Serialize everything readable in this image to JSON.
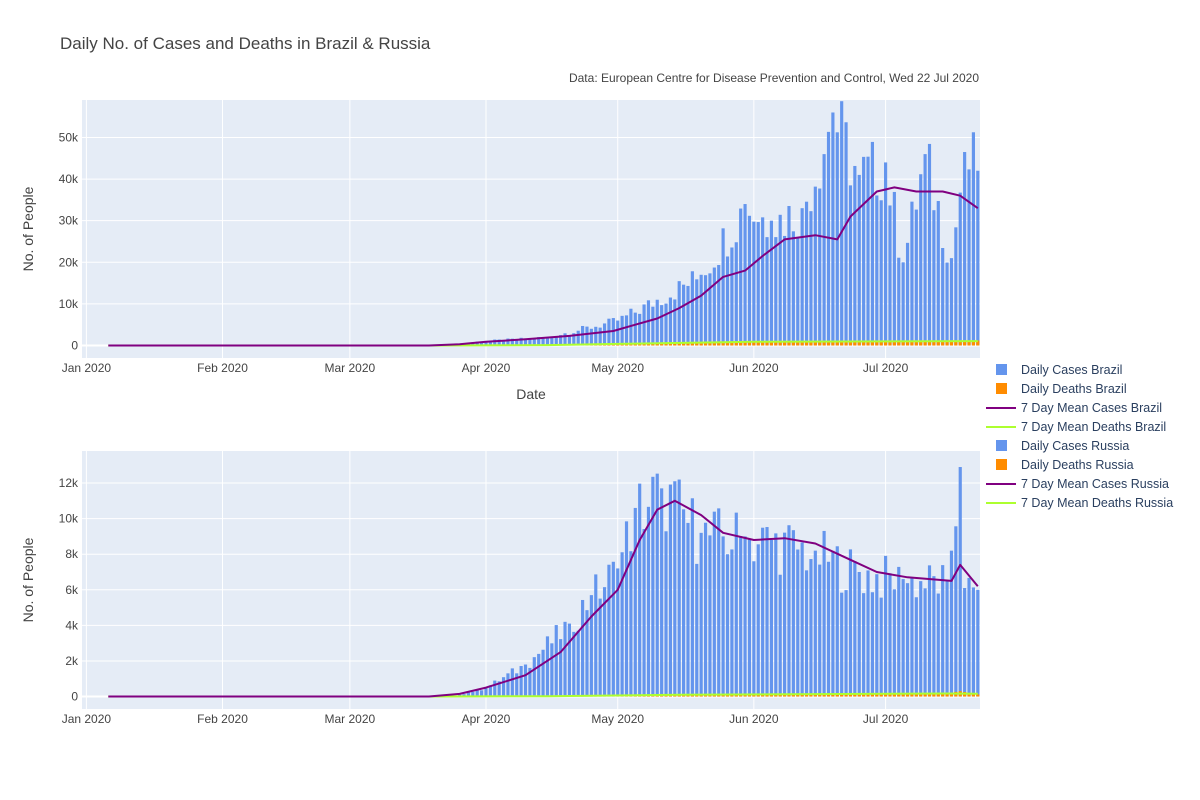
{
  "title": "Daily No. of Cases and Deaths in Brazil & Russia",
  "source_note": "Data: European Centre for Disease Prevention and Control, Wed 22 Jul 2020",
  "colors": {
    "cases_bar": "#6495ED",
    "deaths_bar": "#FF8C00",
    "mean_cases": "#800080",
    "mean_deaths": "#ADFF2F",
    "plot_bg": "#E5ECF6",
    "grid": "#ffffff"
  },
  "legend": [
    {
      "label": "Daily Cases Brazil",
      "kind": "box",
      "color": "#6495ED"
    },
    {
      "label": "Daily Deaths Brazil",
      "kind": "box",
      "color": "#FF8C00"
    },
    {
      "label": "7 Day Mean Cases Brazil",
      "kind": "line",
      "color": "#800080"
    },
    {
      "label": "7 Day Mean Deaths Brazil",
      "kind": "line",
      "color": "#ADFF2F"
    },
    {
      "label": "Daily Cases Russia",
      "kind": "box",
      "color": "#6495ED"
    },
    {
      "label": "Daily Deaths Russia",
      "kind": "box",
      "color": "#FF8C00"
    },
    {
      "label": "7 Day Mean Cases Russia",
      "kind": "line",
      "color": "#800080"
    },
    {
      "label": "7 Day Mean Deaths Russia",
      "kind": "line",
      "color": "#ADFF2F"
    }
  ],
  "chart_data": [
    {
      "type": "bar",
      "country": "Brazil",
      "x_ticks": [
        "Jan 2020",
        "Feb 2020",
        "Mar 2020",
        "Apr 2020",
        "May 2020",
        "Jun 2020",
        "Jul 2020"
      ],
      "xlabel": "Date",
      "ylabel": "No. of People",
      "y_ticks": [
        0,
        10000,
        20000,
        30000,
        40000,
        50000
      ],
      "y_tick_labels": [
        "0",
        "10k",
        "20k",
        "30k",
        "40k",
        "50k"
      ],
      "ylim": [
        -3000,
        59000
      ],
      "x_start": "2019-12-31",
      "x_end": "2020-07-22",
      "series": [
        {
          "name": "Daily Cases Brazil",
          "kind": "bar",
          "points": [
            [
              "2020-03-24",
              300
            ],
            [
              "2020-04-01",
              1100
            ],
            [
              "2020-04-15",
              2000
            ],
            [
              "2020-05-01",
              6000
            ],
            [
              "2020-05-10",
              11000
            ],
            [
              "2020-05-20",
              17000
            ],
            [
              "2020-05-30",
              34000
            ],
            [
              "2020-06-05",
              30000
            ],
            [
              "2020-06-12",
              33000
            ],
            [
              "2020-06-19",
              56000
            ],
            [
              "2020-06-25",
              41000
            ],
            [
              "2020-07-01",
              44000
            ],
            [
              "2020-07-05",
              20000
            ],
            [
              "2020-07-10",
              46000
            ],
            [
              "2020-07-16",
              21000
            ],
            [
              "2020-07-19",
              46500
            ],
            [
              "2020-07-22",
              42000
            ]
          ]
        },
        {
          "name": "Daily Deaths Brazil",
          "kind": "bar",
          "points": [
            [
              "2020-04-01",
              60
            ],
            [
              "2020-05-01",
              400
            ],
            [
              "2020-06-01",
              1000
            ],
            [
              "2020-07-01",
              1100
            ],
            [
              "2020-07-22",
              1200
            ]
          ]
        },
        {
          "name": "7 Day Mean Cases Brazil",
          "kind": "line",
          "points": [
            [
              "2020-01-06",
              0
            ],
            [
              "2020-03-19",
              0
            ],
            [
              "2020-03-26",
              300
            ],
            [
              "2020-04-01",
              900
            ],
            [
              "2020-04-10",
              1500
            ],
            [
              "2020-04-20",
              2300
            ],
            [
              "2020-04-30",
              3500
            ],
            [
              "2020-05-05",
              5000
            ],
            [
              "2020-05-10",
              6500
            ],
            [
              "2020-05-15",
              9000
            ],
            [
              "2020-05-20",
              12000
            ],
            [
              "2020-05-25",
              16500
            ],
            [
              "2020-05-30",
              18000
            ],
            [
              "2020-06-03",
              21500
            ],
            [
              "2020-06-08",
              25500
            ],
            [
              "2020-06-15",
              26500
            ],
            [
              "2020-06-20",
              25500
            ],
            [
              "2020-06-23",
              31000
            ],
            [
              "2020-06-29",
              37000
            ],
            [
              "2020-07-03",
              38000
            ],
            [
              "2020-07-08",
              37000
            ],
            [
              "2020-07-14",
              37000
            ],
            [
              "2020-07-18",
              36000
            ],
            [
              "2020-07-22",
              33000
            ]
          ]
        },
        {
          "name": "7 Day Mean Deaths Brazil",
          "kind": "line",
          "points": [
            [
              "2020-01-06",
              0
            ],
            [
              "2020-03-19",
              0
            ],
            [
              "2020-04-15",
              100
            ],
            [
              "2020-05-01",
              400
            ],
            [
              "2020-06-01",
              900
            ],
            [
              "2020-07-01",
              1000
            ],
            [
              "2020-07-22",
              1050
            ]
          ]
        }
      ]
    },
    {
      "type": "bar",
      "country": "Russia",
      "x_ticks": [
        "Jan 2020",
        "Feb 2020",
        "Mar 2020",
        "Apr 2020",
        "May 2020",
        "Jun 2020",
        "Jul 2020"
      ],
      "xlabel": "",
      "ylabel": "No. of People",
      "y_ticks": [
        0,
        2000,
        4000,
        6000,
        8000,
        10000,
        12000
      ],
      "y_tick_labels": [
        "0",
        "2k",
        "4k",
        "6k",
        "8k",
        "10k",
        "12k"
      ],
      "ylim": [
        -700,
        13800
      ],
      "x_start": "2019-12-31",
      "x_end": "2020-07-22",
      "series": [
        {
          "name": "Daily Cases Russia",
          "kind": "bar",
          "points": [
            [
              "2020-03-26",
              100
            ],
            [
              "2020-04-01",
              500
            ],
            [
              "2020-04-10",
              1800
            ],
            [
              "2020-04-20",
              4100
            ],
            [
              "2020-04-25",
              5700
            ],
            [
              "2020-05-01",
              7200
            ],
            [
              "2020-05-05",
              10600
            ],
            [
              "2020-05-11",
              11700
            ],
            [
              "2020-05-20",
              9200
            ],
            [
              "2020-05-30",
              9000
            ],
            [
              "2020-06-05",
              8800
            ],
            [
              "2020-06-15",
              8200
            ],
            [
              "2020-06-25",
              7000
            ],
            [
              "2020-07-05",
              6600
            ],
            [
              "2020-07-15",
              6500
            ],
            [
              "2020-07-18",
              12900
            ],
            [
              "2020-07-19",
              6100
            ],
            [
              "2020-07-22",
              6000
            ]
          ]
        },
        {
          "name": "Daily Deaths Russia",
          "kind": "bar",
          "points": [
            [
              "2020-04-15",
              20
            ],
            [
              "2020-05-15",
              110
            ],
            [
              "2020-06-15",
              140
            ],
            [
              "2020-07-15",
              180
            ],
            [
              "2020-07-18",
              300
            ],
            [
              "2020-07-22",
              120
            ]
          ]
        },
        {
          "name": "7 Day Mean Cases Russia",
          "kind": "line",
          "points": [
            [
              "2020-01-06",
              0
            ],
            [
              "2020-03-19",
              0
            ],
            [
              "2020-03-26",
              150
            ],
            [
              "2020-04-01",
              500
            ],
            [
              "2020-04-10",
              1200
            ],
            [
              "2020-04-18",
              2500
            ],
            [
              "2020-04-25",
              4500
            ],
            [
              "2020-05-01",
              6000
            ],
            [
              "2020-05-06",
              8800
            ],
            [
              "2020-05-10",
              10500
            ],
            [
              "2020-05-14",
              11000
            ],
            [
              "2020-05-20",
              10200
            ],
            [
              "2020-05-25",
              9200
            ],
            [
              "2020-06-01",
              8800
            ],
            [
              "2020-06-08",
              8900
            ],
            [
              "2020-06-15",
              8600
            ],
            [
              "2020-06-22",
              7800
            ],
            [
              "2020-06-29",
              7000
            ],
            [
              "2020-07-06",
              6700
            ],
            [
              "2020-07-16",
              6500
            ],
            [
              "2020-07-18",
              7400
            ],
            [
              "2020-07-22",
              6200
            ]
          ]
        },
        {
          "name": "7 Day Mean Deaths Russia",
          "kind": "line",
          "points": [
            [
              "2020-01-06",
              0
            ],
            [
              "2020-03-19",
              0
            ],
            [
              "2020-04-15",
              20
            ],
            [
              "2020-05-15",
              100
            ],
            [
              "2020-06-15",
              140
            ],
            [
              "2020-07-15",
              170
            ],
            [
              "2020-07-22",
              160
            ]
          ]
        }
      ]
    }
  ]
}
